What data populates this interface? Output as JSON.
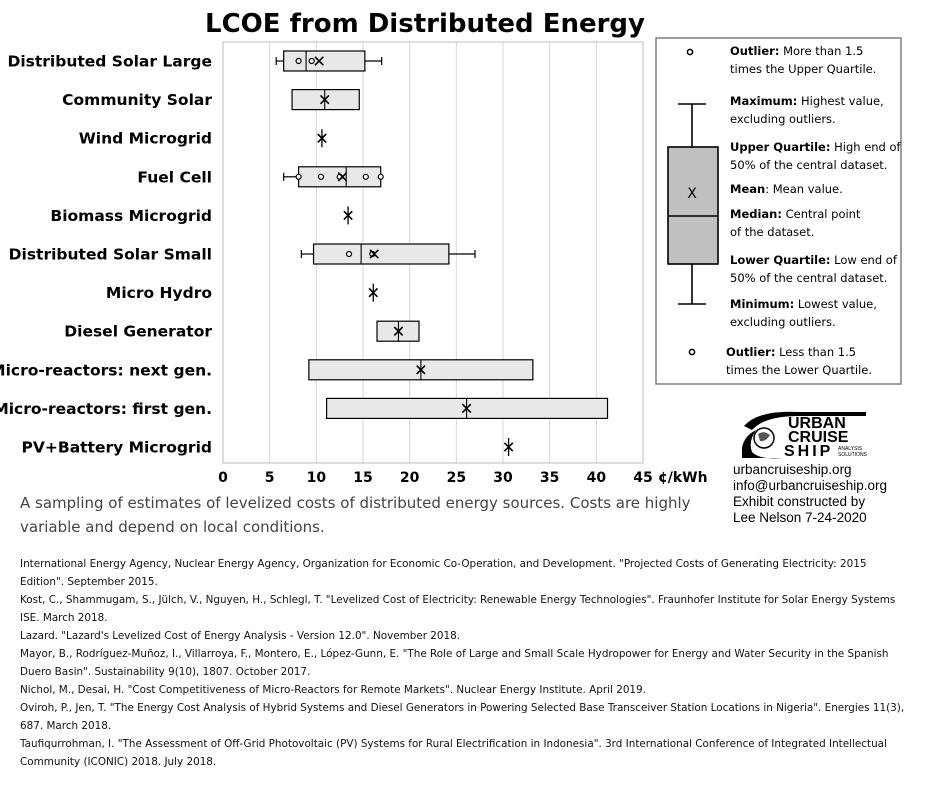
{
  "chart_data": {
    "type": "box",
    "title": "LCOE from Distributed Energy",
    "unit_label": "¢/kWh",
    "xlim": [
      0,
      45
    ],
    "x_ticks": [
      "0",
      "5",
      "10",
      "15",
      "20",
      "25",
      "30",
      "35",
      "40",
      "45"
    ],
    "grid": "vertical",
    "categories": [
      {
        "label": "Distributed Solar Large",
        "min": 5.7,
        "q1": 6.5,
        "median": 8.9,
        "q3": 15.2,
        "max": 17.0,
        "mean": 10.3,
        "points": [
          8.1,
          9.5
        ]
      },
      {
        "label": "Community Solar",
        "min": 7.4,
        "q1": 7.4,
        "median": 10.9,
        "q3": 14.6,
        "max": 14.6,
        "mean": 10.9,
        "points": []
      },
      {
        "label": "Wind Microgrid",
        "min": 10.6,
        "q1": 10.6,
        "median": 10.6,
        "q3": 10.6,
        "max": 10.6,
        "mean": 10.6,
        "points": []
      },
      {
        "label": "Fuel Cell",
        "min": 6.5,
        "q1": 8.1,
        "median": 13.2,
        "q3": 16.9,
        "max": 16.9,
        "mean": 12.8,
        "points": [
          8.1,
          10.5,
          12.5,
          15.3,
          16.9
        ]
      },
      {
        "label": "Biomass Microgrid",
        "min": 13.4,
        "q1": 13.4,
        "median": 13.4,
        "q3": 13.4,
        "max": 13.4,
        "mean": 13.4,
        "points": []
      },
      {
        "label": "Distributed Solar Small",
        "min": 8.4,
        "q1": 9.7,
        "median": 14.8,
        "q3": 24.2,
        "max": 27.0,
        "mean": 16.2,
        "points": [
          13.5,
          16.0
        ]
      },
      {
        "label": "Micro Hydro",
        "min": 16.1,
        "q1": 16.1,
        "median": 16.1,
        "q3": 16.1,
        "max": 16.1,
        "mean": 16.1,
        "points": []
      },
      {
        "label": "Diesel Generator",
        "min": 16.5,
        "q1": 16.5,
        "median": 18.8,
        "q3": 21.0,
        "max": 21.0,
        "mean": 18.8,
        "points": []
      },
      {
        "label": "Micro-reactors: next gen.",
        "min": 9.2,
        "q1": 9.2,
        "median": 21.2,
        "q3": 33.2,
        "max": 33.2,
        "mean": 21.2,
        "points": []
      },
      {
        "label": "Micro-reactors: first gen.",
        "min": 11.1,
        "q1": 11.1,
        "median": 26.1,
        "q3": 41.2,
        "max": 41.2,
        "mean": 26.1,
        "points": []
      },
      {
        "label": "PV+Battery Microgrid",
        "min": 30.6,
        "q1": 30.6,
        "median": 30.6,
        "q3": 30.6,
        "max": 30.6,
        "mean": 30.6,
        "points": []
      }
    ]
  },
  "legend": {
    "mean_marker": "X",
    "items": [
      {
        "key": "outlier_high",
        "label": "Outlier:",
        "desc": [
          "More than 1.5",
          "times the Upper Quartile."
        ]
      },
      {
        "key": "maximum",
        "label": "Maximum:",
        "desc": [
          "Highest value,",
          "excluding outliers."
        ]
      },
      {
        "key": "upper_quartile",
        "label": "Upper Quartile:",
        "desc": [
          "High end of",
          "50% of the central dataset."
        ]
      },
      {
        "key": "mean",
        "label": "Mean",
        "desc": [
          ": Mean value."
        ]
      },
      {
        "key": "median",
        "label": "Median:",
        "desc": [
          "Central point",
          "of the dataset."
        ]
      },
      {
        "key": "lower_quartile",
        "label": "Lower Quartile:",
        "desc": [
          "Low end of",
          "50% of the central dataset."
        ]
      },
      {
        "key": "minimum",
        "label": "Minimum:",
        "desc": [
          "Lowest value,",
          "excluding outliers."
        ]
      },
      {
        "key": "outlier_low",
        "label": "Outlier:",
        "desc": [
          "Less than 1.5",
          "times the Lower Quartile."
        ]
      }
    ]
  },
  "logo": {
    "line1": "URBAN",
    "line2": "CRUISE",
    "line3": "SHIP",
    "sub1": "ANALYSIS",
    "sub2": "SOLUTIONS"
  },
  "contact": {
    "website": "urbancruiseship.org",
    "email": "info@urbancruiseship.org",
    "credit1": "Exhibit constructed by",
    "credit2": "Lee Nelson 7-24-2020"
  },
  "caption": "A sampling of estimates of levelized costs of distributed energy sources. Costs are highly variable and depend on local conditions.",
  "references": [
    "International Energy Agency, Nuclear Energy Agency, Organization for Economic Co-Operation, and Development. \"Projected Costs of Generating Electricity: 2015 Edition\". September 2015.",
    "Kost, C., Shammugam, S., Jülch, V., Nguyen, H., Schlegl, T. \"Levelized Cost of Electricity: Renewable Energy Technologies\". Fraunhofer Institute for Solar Energy Systems ISE. March 2018.",
    "Lazard. \"Lazard's Levelized Cost of Energy Analysis - Version 12.0\". November 2018.",
    "Mayor, B., Rodríguez-Muñoz, I., Villarroya, F., Montero, E., López-Gunn, E. \"The Role of Large and Small Scale Hydropower for Energy and Water Security in the Spanish Duero Basin\". Sustainability 9(10), 1807. October 2017.",
    "Nichol, M., Desai, H. \"Cost Competitiveness of Micro-Reactors for Remote Markets\". Nuclear Energy Institute. April 2019.",
    "Oviroh, P., Jen, T. \"The Energy Cost Analysis of Hybrid Systems and Diesel Generators in Powering Selected Base Transceiver Station Locations in Nigeria\". Energies 11(3), 687. March 2018.",
    "Taufiqurrohman, I. \"The Assessment of Off-Grid Photovoltaic (PV) Systems for Rural Electrification in Indonesia\". 3rd International Conference of Integrated Intellectual Community (ICONIC) 2018. July 2018."
  ]
}
